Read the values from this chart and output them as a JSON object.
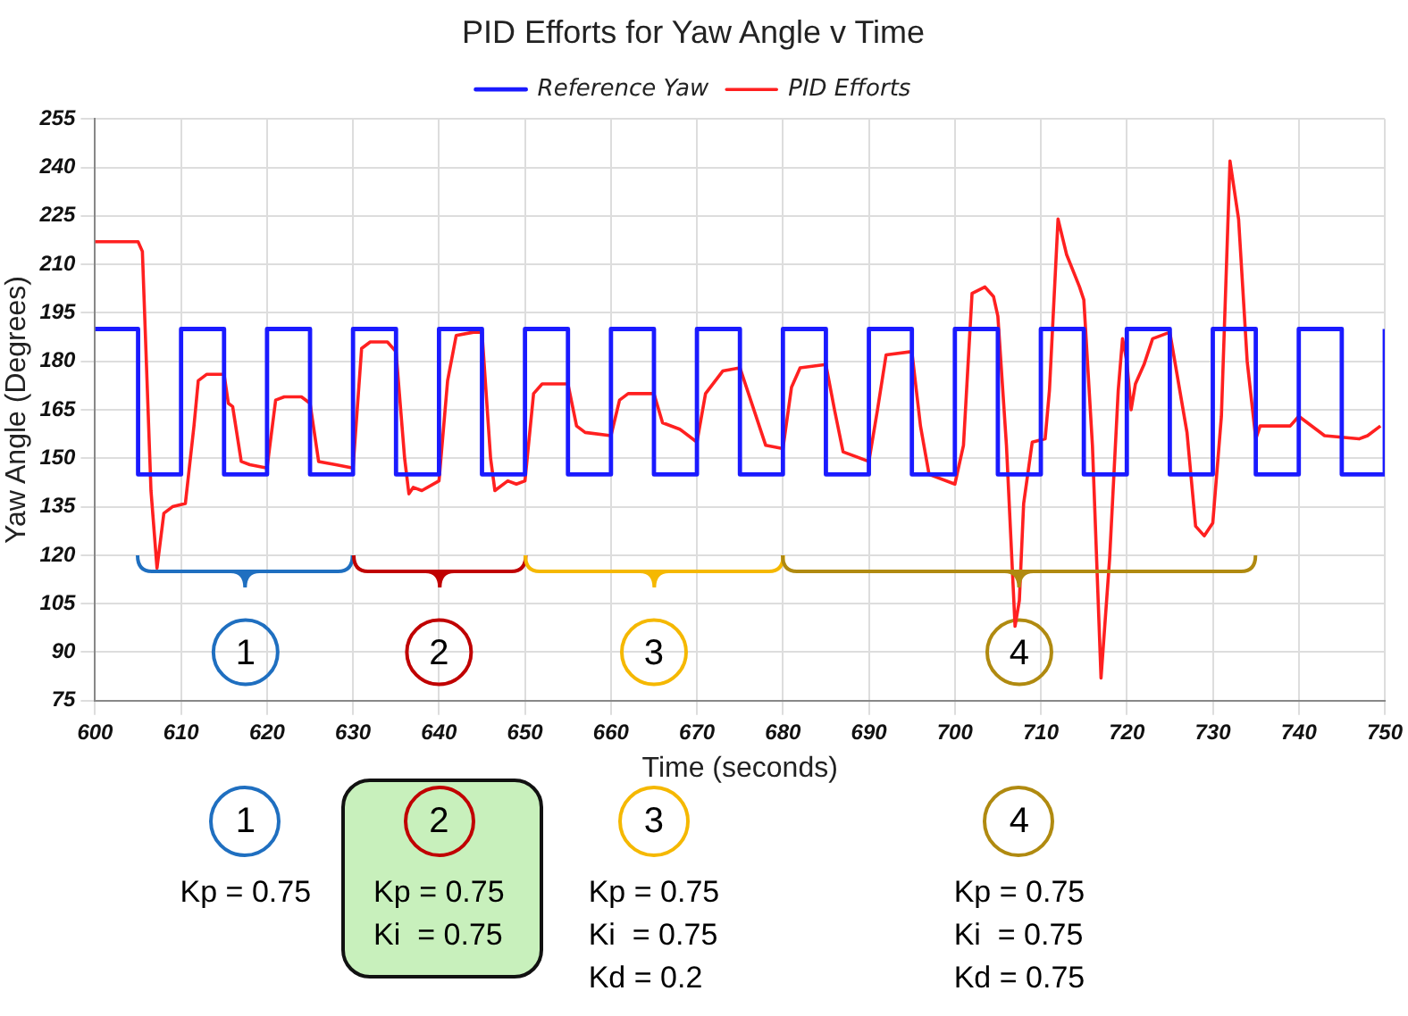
{
  "chart_data": {
    "type": "line",
    "title": "PID Efforts for Yaw Angle v Time",
    "xlabel": "Time (seconds)",
    "ylabel": "Yaw Angle (Degrees)",
    "xlim": [
      600,
      750
    ],
    "xticks": [
      600,
      610,
      620,
      630,
      640,
      650,
      660,
      670,
      680,
      690,
      700,
      710,
      720,
      730,
      740,
      750
    ],
    "ylim": [
      75,
      255
    ],
    "yticks": [
      75,
      90,
      105,
      120,
      135,
      150,
      165,
      180,
      195,
      210,
      225,
      240,
      255
    ],
    "grid": true,
    "legend": "top",
    "marker": "none",
    "line_style": "solid",
    "series": [
      {
        "name": "Reference Yaw",
        "type": "step",
        "color": "#1a1aff",
        "x": [
          600,
          605,
          610,
          615,
          620,
          625,
          630,
          635,
          640,
          645,
          650,
          655,
          660,
          665,
          670,
          675,
          680,
          685,
          690,
          695,
          700,
          705,
          710,
          715,
          720,
          725,
          730,
          735,
          740,
          745,
          750
        ],
        "values": [
          190,
          145,
          190,
          145,
          190,
          145,
          190,
          145,
          190,
          145,
          190,
          145,
          190,
          145,
          190,
          145,
          190,
          145,
          190,
          145,
          190,
          145,
          190,
          145,
          190,
          145,
          190,
          145,
          190,
          145,
          190
        ]
      },
      {
        "name": "PID Efforts",
        "type": "line",
        "color": "#ff2020",
        "x": [
          600,
          605,
          605.5,
          606.5,
          607.2,
          608,
          609,
          610.5,
          611.5,
          612,
          613,
          615,
          615.5,
          616,
          617,
          618,
          620,
          621,
          622,
          624,
          625,
          626,
          628,
          630,
          631,
          632,
          634,
          635,
          636,
          636.5,
          637,
          638,
          640,
          641,
          642,
          644,
          645,
          646,
          646.5,
          648,
          649,
          650,
          651,
          652,
          655,
          656,
          657,
          660,
          661,
          662,
          665,
          666,
          668,
          670,
          671,
          673,
          675,
          676,
          678,
          680,
          681,
          682,
          685,
          686,
          687,
          690,
          691,
          692,
          695,
          696,
          697,
          700,
          701,
          702,
          703.5,
          704.5,
          705,
          706,
          707,
          707.5,
          708,
          709,
          710.5,
          711,
          712,
          713,
          714.5,
          715,
          716,
          717,
          718,
          719,
          719.5,
          720,
          720.5,
          721,
          722,
          723,
          725,
          727,
          728,
          729,
          730,
          731,
          732,
          733,
          734,
          735,
          735.5,
          739,
          740,
          742,
          743,
          747,
          748,
          749.5
        ],
        "values": [
          217,
          217,
          214,
          140,
          116,
          133,
          135,
          136,
          160,
          174,
          176,
          176,
          167,
          166,
          149,
          148,
          147,
          168,
          169,
          169,
          167,
          149,
          148,
          147,
          184,
          186,
          186,
          183,
          150,
          139,
          141,
          140,
          143,
          174,
          188,
          189,
          189,
          150,
          140,
          143,
          142,
          143,
          170,
          173,
          173,
          160,
          158,
          157,
          168,
          170,
          170,
          161,
          159,
          155,
          170,
          177,
          178,
          170,
          154,
          153,
          172,
          178,
          179,
          165,
          152,
          149,
          165,
          182,
          183,
          160,
          145,
          142,
          154,
          201,
          203,
          200,
          194,
          154,
          98,
          106,
          136,
          155,
          156,
          171,
          224,
          213,
          203,
          199,
          154,
          82,
          119,
          171,
          187,
          180,
          165,
          173,
          179,
          187,
          189,
          158,
          129,
          126,
          130,
          163,
          242,
          224,
          180,
          156,
          160,
          160,
          163,
          159,
          157,
          156,
          157,
          160
        ]
      }
    ],
    "annotations": [
      {
        "text": "1",
        "x": 617.5,
        "y": 90
      },
      {
        "text": "2",
        "x": 640,
        "y": 90
      },
      {
        "text": "3",
        "x": 665,
        "y": 90
      },
      {
        "text": "4",
        "x": 707.5,
        "y": 90
      },
      "Kp = 0.75",
      "Kp = 0.75\nKi  = 0.75",
      "Kp = 0.75\nKi  = 0.75\nKd = 0.2",
      "Kp = 0.75\nKi  = 0.75\nKd = 0.75"
    ]
  }
}
